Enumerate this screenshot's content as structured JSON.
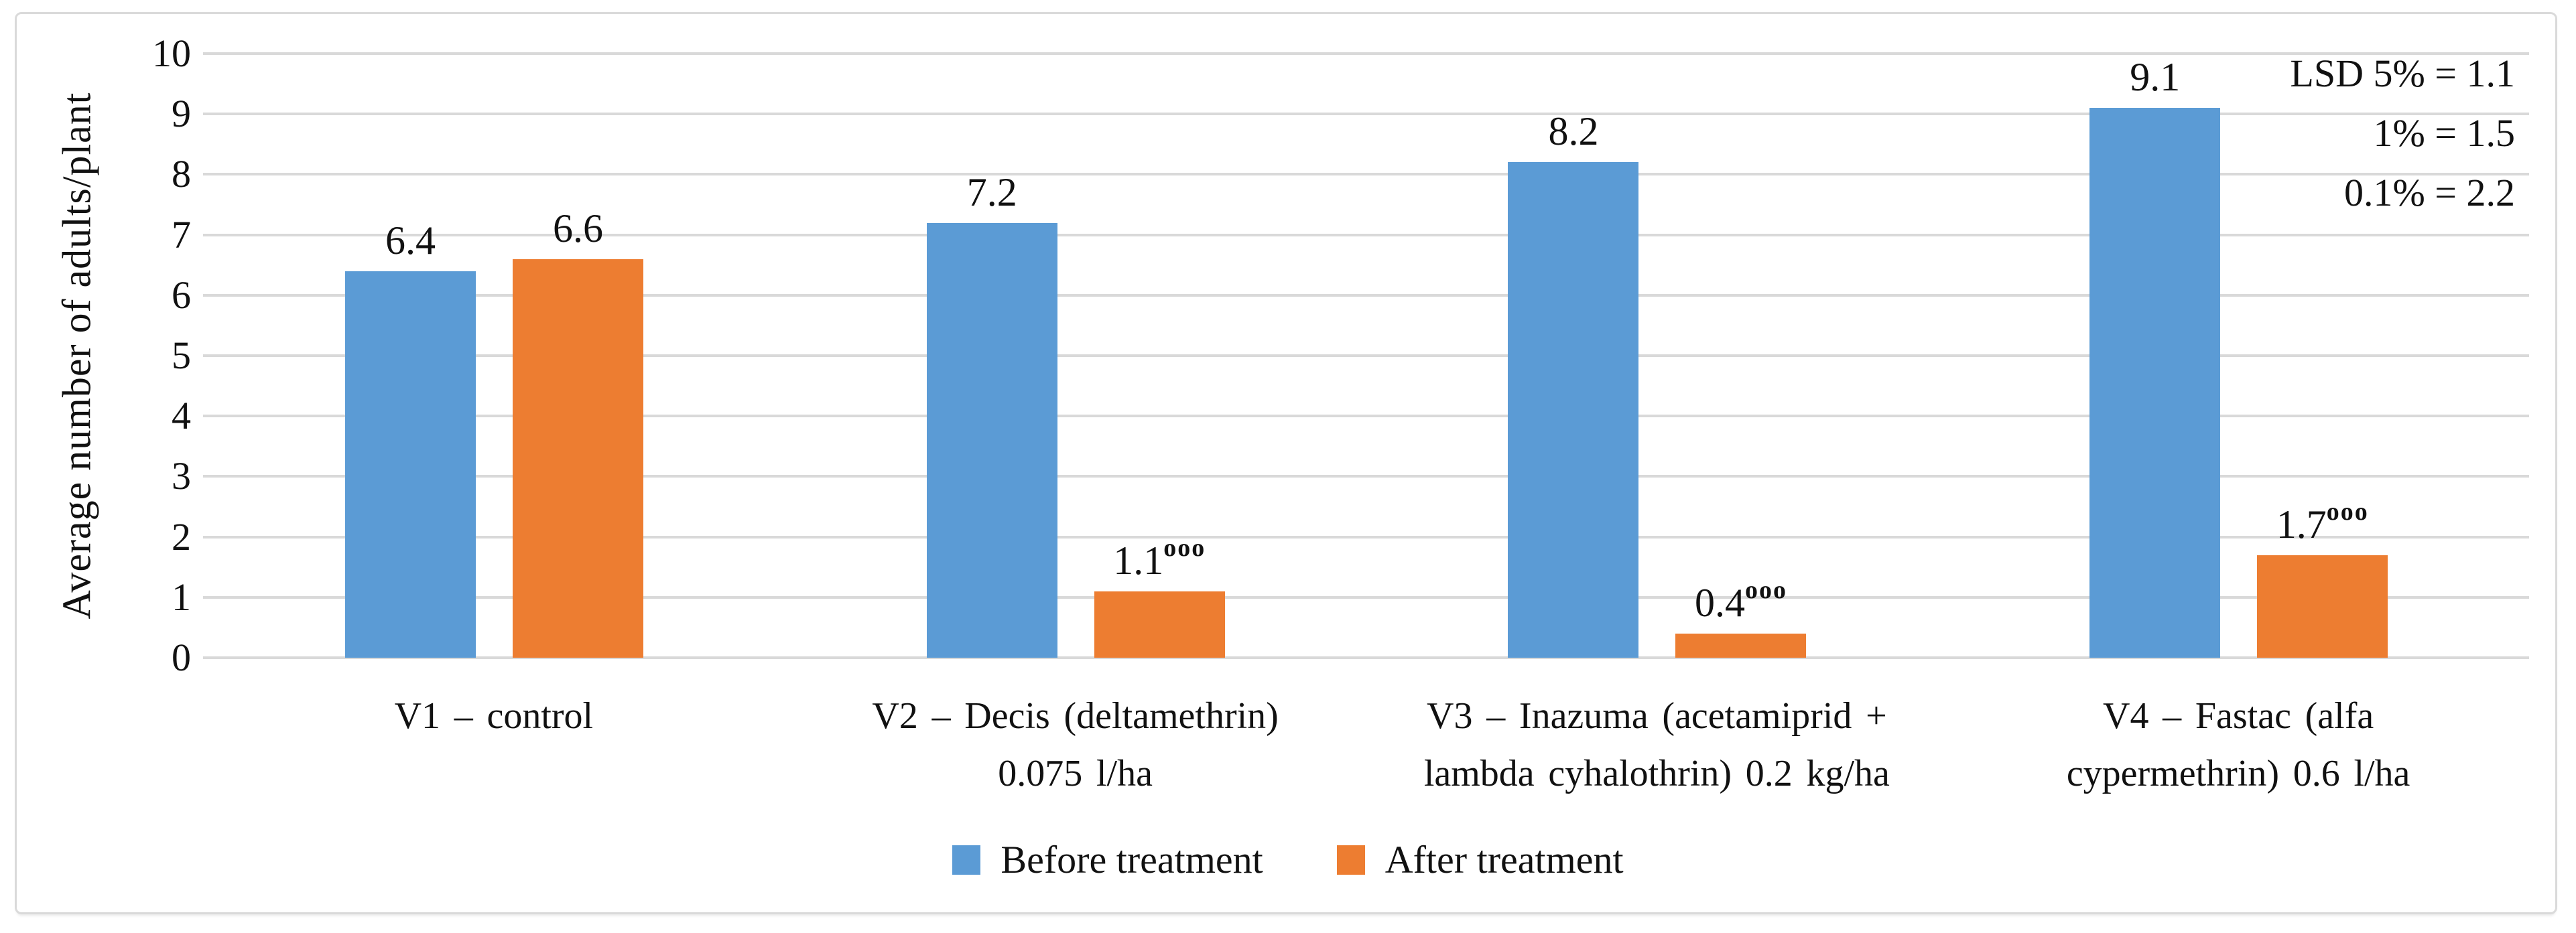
{
  "figure": {
    "y_axis_title": "Average number of adults/plant"
  },
  "annotation": {
    "lines": [
      "LSD 5% = 1.1",
      "1% = 1.5",
      "0.1% = 2.2"
    ]
  },
  "chart_data": {
    "type": "bar",
    "title": "",
    "xlabel": "",
    "ylabel": "Average number of adults/plant",
    "ylim": [
      0,
      10
    ],
    "yticks": [
      0,
      1,
      2,
      3,
      4,
      5,
      6,
      7,
      8,
      9,
      10
    ],
    "grid": "horizontal-only",
    "gridline_color": "#d9d9d9",
    "legend_position": "bottom-center",
    "categories": [
      "V1 – control",
      "V2 – Decis (deltamethrin)\n0.075 l/ha",
      "V3 – Inazuma (acetamiprid +\nlambda cyhalothrin) 0.2 kg/ha",
      "V4 – Fastac (alfa\ncypermethrin) 0.6 l/ha"
    ],
    "series": [
      {
        "name": "Before treatment",
        "color": "#5B9BD5",
        "values": [
          6.4,
          7.2,
          8.2,
          9.1
        ],
        "value_labels": [
          "6.4",
          "7.2",
          "8.2",
          "9.1"
        ],
        "value_sups": [
          "",
          "",
          "",
          ""
        ]
      },
      {
        "name": "After treatment",
        "color": "#ED7D31",
        "values": [
          6.6,
          1.1,
          0.4,
          1.7
        ],
        "value_labels": [
          "6.6",
          "1.1",
          "0.4",
          "1.7"
        ],
        "value_sups": [
          "",
          "ooo",
          "ooo",
          "ooo"
        ]
      }
    ],
    "lsd": {
      "5%": 1.1,
      "1%": 1.5,
      "0.1%": 2.2
    }
  }
}
